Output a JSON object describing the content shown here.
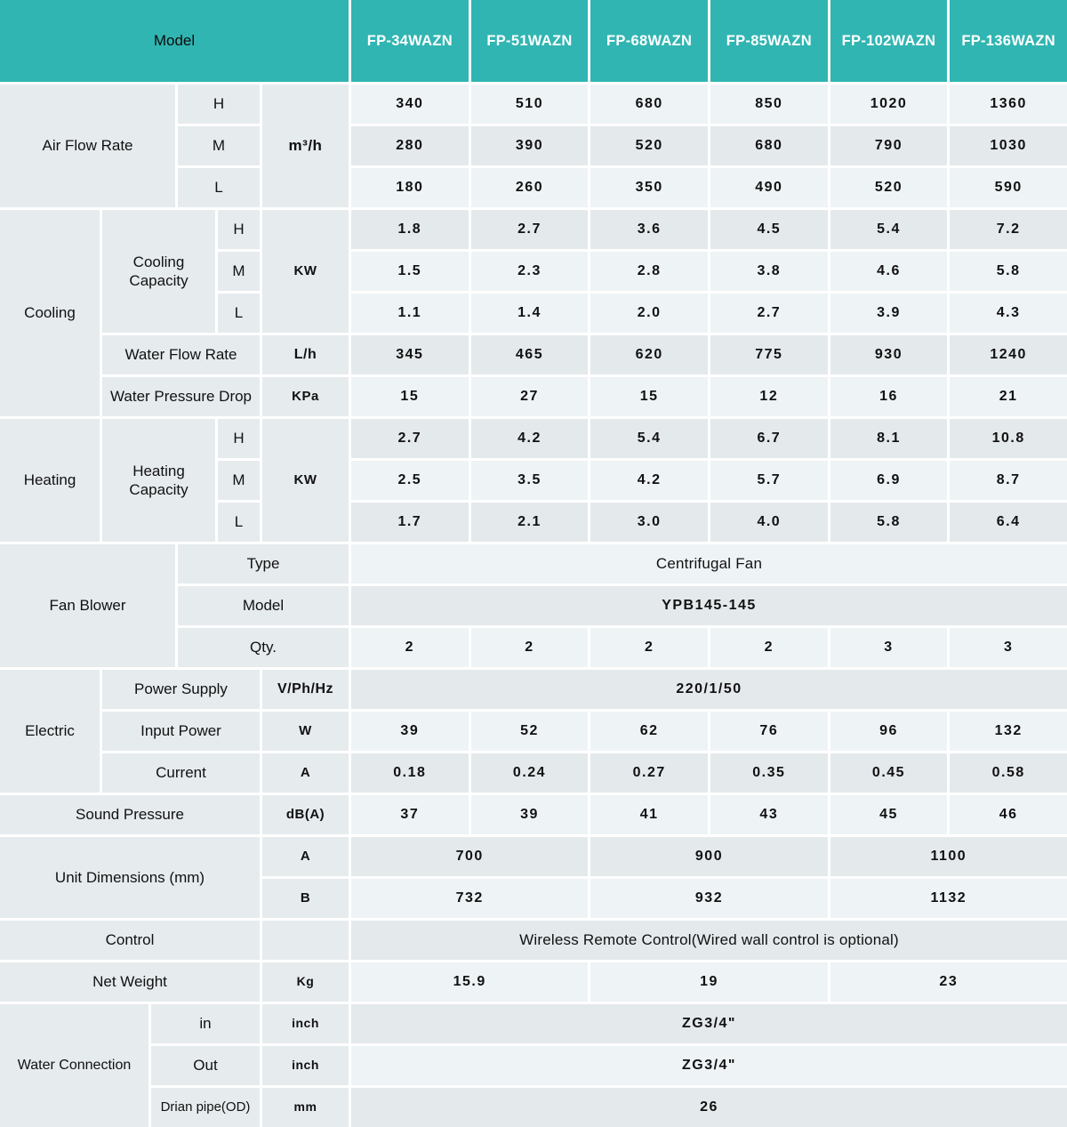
{
  "colors": {
    "teal": "#30b5b2",
    "model_text": "#ffffff",
    "label_bg": "#e6ebee",
    "cell_dark": "#e4e9ec",
    "cell_light": "#eef3f6",
    "gap": "#ffffff"
  },
  "header": {
    "model_label": "Model",
    "models": [
      "FP-34WAZN",
      "FP-51WAZN",
      "FP-68WAZN",
      "FP-85WAZN",
      "FP-102WAZN",
      "FP-136WAZN"
    ]
  },
  "levels": [
    "H",
    "M",
    "L"
  ],
  "air_flow": {
    "label": "Air Flow Rate",
    "unit": "m³/h",
    "h": [
      "340",
      "510",
      "680",
      "850",
      "1020",
      "1360"
    ],
    "m": [
      "280",
      "390",
      "520",
      "680",
      "790",
      "1030"
    ],
    "l": [
      "180",
      "260",
      "350",
      "490",
      "520",
      "590"
    ]
  },
  "cooling": {
    "label": "Cooling",
    "capacity_label": "Cooling Capacity",
    "capacity_unit": "KW",
    "h": [
      "1.8",
      "2.7",
      "3.6",
      "4.5",
      "5.4",
      "7.2"
    ],
    "m": [
      "1.5",
      "2.3",
      "2.8",
      "3.8",
      "4.6",
      "5.8"
    ],
    "l": [
      "1.1",
      "1.4",
      "2.0",
      "2.7",
      "3.9",
      "4.3"
    ],
    "water_flow_label": "Water Flow Rate",
    "water_flow_unit": "L/h",
    "water_flow": [
      "345",
      "465",
      "620",
      "775",
      "930",
      "1240"
    ],
    "pressure_label": "Water Pressure Drop",
    "pressure_unit": "KPa",
    "pressure": [
      "15",
      "27",
      "15",
      "12",
      "16",
      "21"
    ]
  },
  "heating": {
    "label": "Heating",
    "capacity_label": "Heating Capacity",
    "capacity_unit": "KW",
    "h": [
      "2.7",
      "4.2",
      "5.4",
      "6.7",
      "8.1",
      "10.8"
    ],
    "m": [
      "2.5",
      "3.5",
      "4.2",
      "5.7",
      "6.9",
      "8.7"
    ],
    "l": [
      "1.7",
      "2.1",
      "3.0",
      "4.0",
      "5.8",
      "6.4"
    ]
  },
  "fan": {
    "label": "Fan Blower",
    "type_label": "Type",
    "type_value": "Centrifugal Fan",
    "model_label": "Model",
    "model_value": "YPB145-145",
    "qty_label": "Qty.",
    "qty": [
      "2",
      "2",
      "2",
      "2",
      "3",
      "3"
    ]
  },
  "electric": {
    "label": "Electric",
    "power_supply_label": "Power Supply",
    "power_supply_unit": "V/Ph/Hz",
    "power_supply_value": "220/1/50",
    "input_power_label": "Input Power",
    "input_power_unit": "W",
    "input_power": [
      "39",
      "52",
      "62",
      "76",
      "96",
      "132"
    ],
    "current_label": "Current",
    "current_unit": "A",
    "current": [
      "0.18",
      "0.24",
      "0.27",
      "0.35",
      "0.45",
      "0.58"
    ]
  },
  "sound": {
    "label": "Sound Pressure",
    "unit": "dB(A)",
    "values": [
      "37",
      "39",
      "41",
      "43",
      "45",
      "46"
    ]
  },
  "dimensions": {
    "label": "Unit Dimensions (mm)",
    "a_label": "A",
    "a_values": [
      "700",
      "900",
      "1100"
    ],
    "b_label": "B",
    "b_values": [
      "732",
      "932",
      "1132"
    ]
  },
  "control": {
    "label": "Control",
    "value": "Wireless Remote Control(Wired wall control is optional)"
  },
  "net_weight": {
    "label": "Net Weight",
    "unit": "Kg",
    "values": [
      "15.9",
      "19",
      "23"
    ]
  },
  "water": {
    "label": "Water Connection",
    "in_label": "in",
    "in_unit": "inch",
    "in_value": "ZG3/4\"",
    "out_label": "Out",
    "out_unit": "inch",
    "out_value": "ZG3/4\"",
    "drain_label": "Drian pipe(OD)",
    "drain_unit": "mm",
    "drain_value": "26"
  }
}
